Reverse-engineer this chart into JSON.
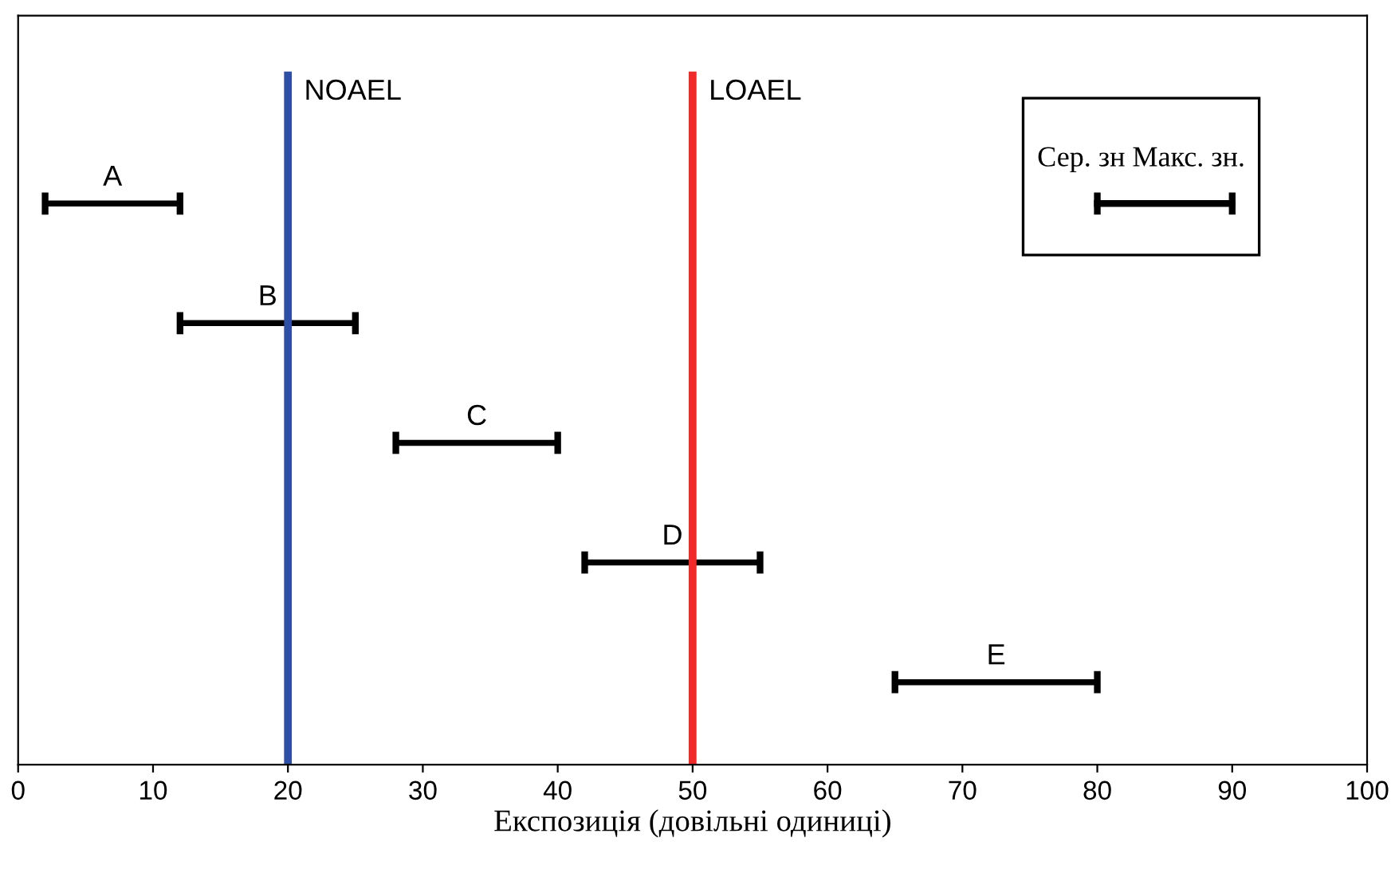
{
  "chart_data": {
    "type": "bar",
    "orientation": "horizontal",
    "categories": [
      "A",
      "B",
      "C",
      "D",
      "E"
    ],
    "base": [
      2,
      12,
      28,
      42,
      65
    ],
    "values": [
      10,
      13,
      12,
      13,
      15
    ],
    "color": "#000000",
    "xlabel": "Експозиція (довільні одиниці)",
    "xlim": [
      0,
      100
    ],
    "xticks": [
      0,
      10,
      20,
      30,
      40,
      50,
      60,
      70,
      80,
      90,
      100
    ],
    "tick_labels": "x",
    "grid": false,
    "ref_lines": [
      {
        "axis": "x",
        "value": 20,
        "label": "NOAEL",
        "color": "#2e4fa8"
      },
      {
        "axis": "x",
        "value": 50,
        "label": "LOAEL",
        "color": "#ee2a2a"
      }
    ],
    "annotations": [
      "Сер. зн Макс. зн."
    ]
  }
}
